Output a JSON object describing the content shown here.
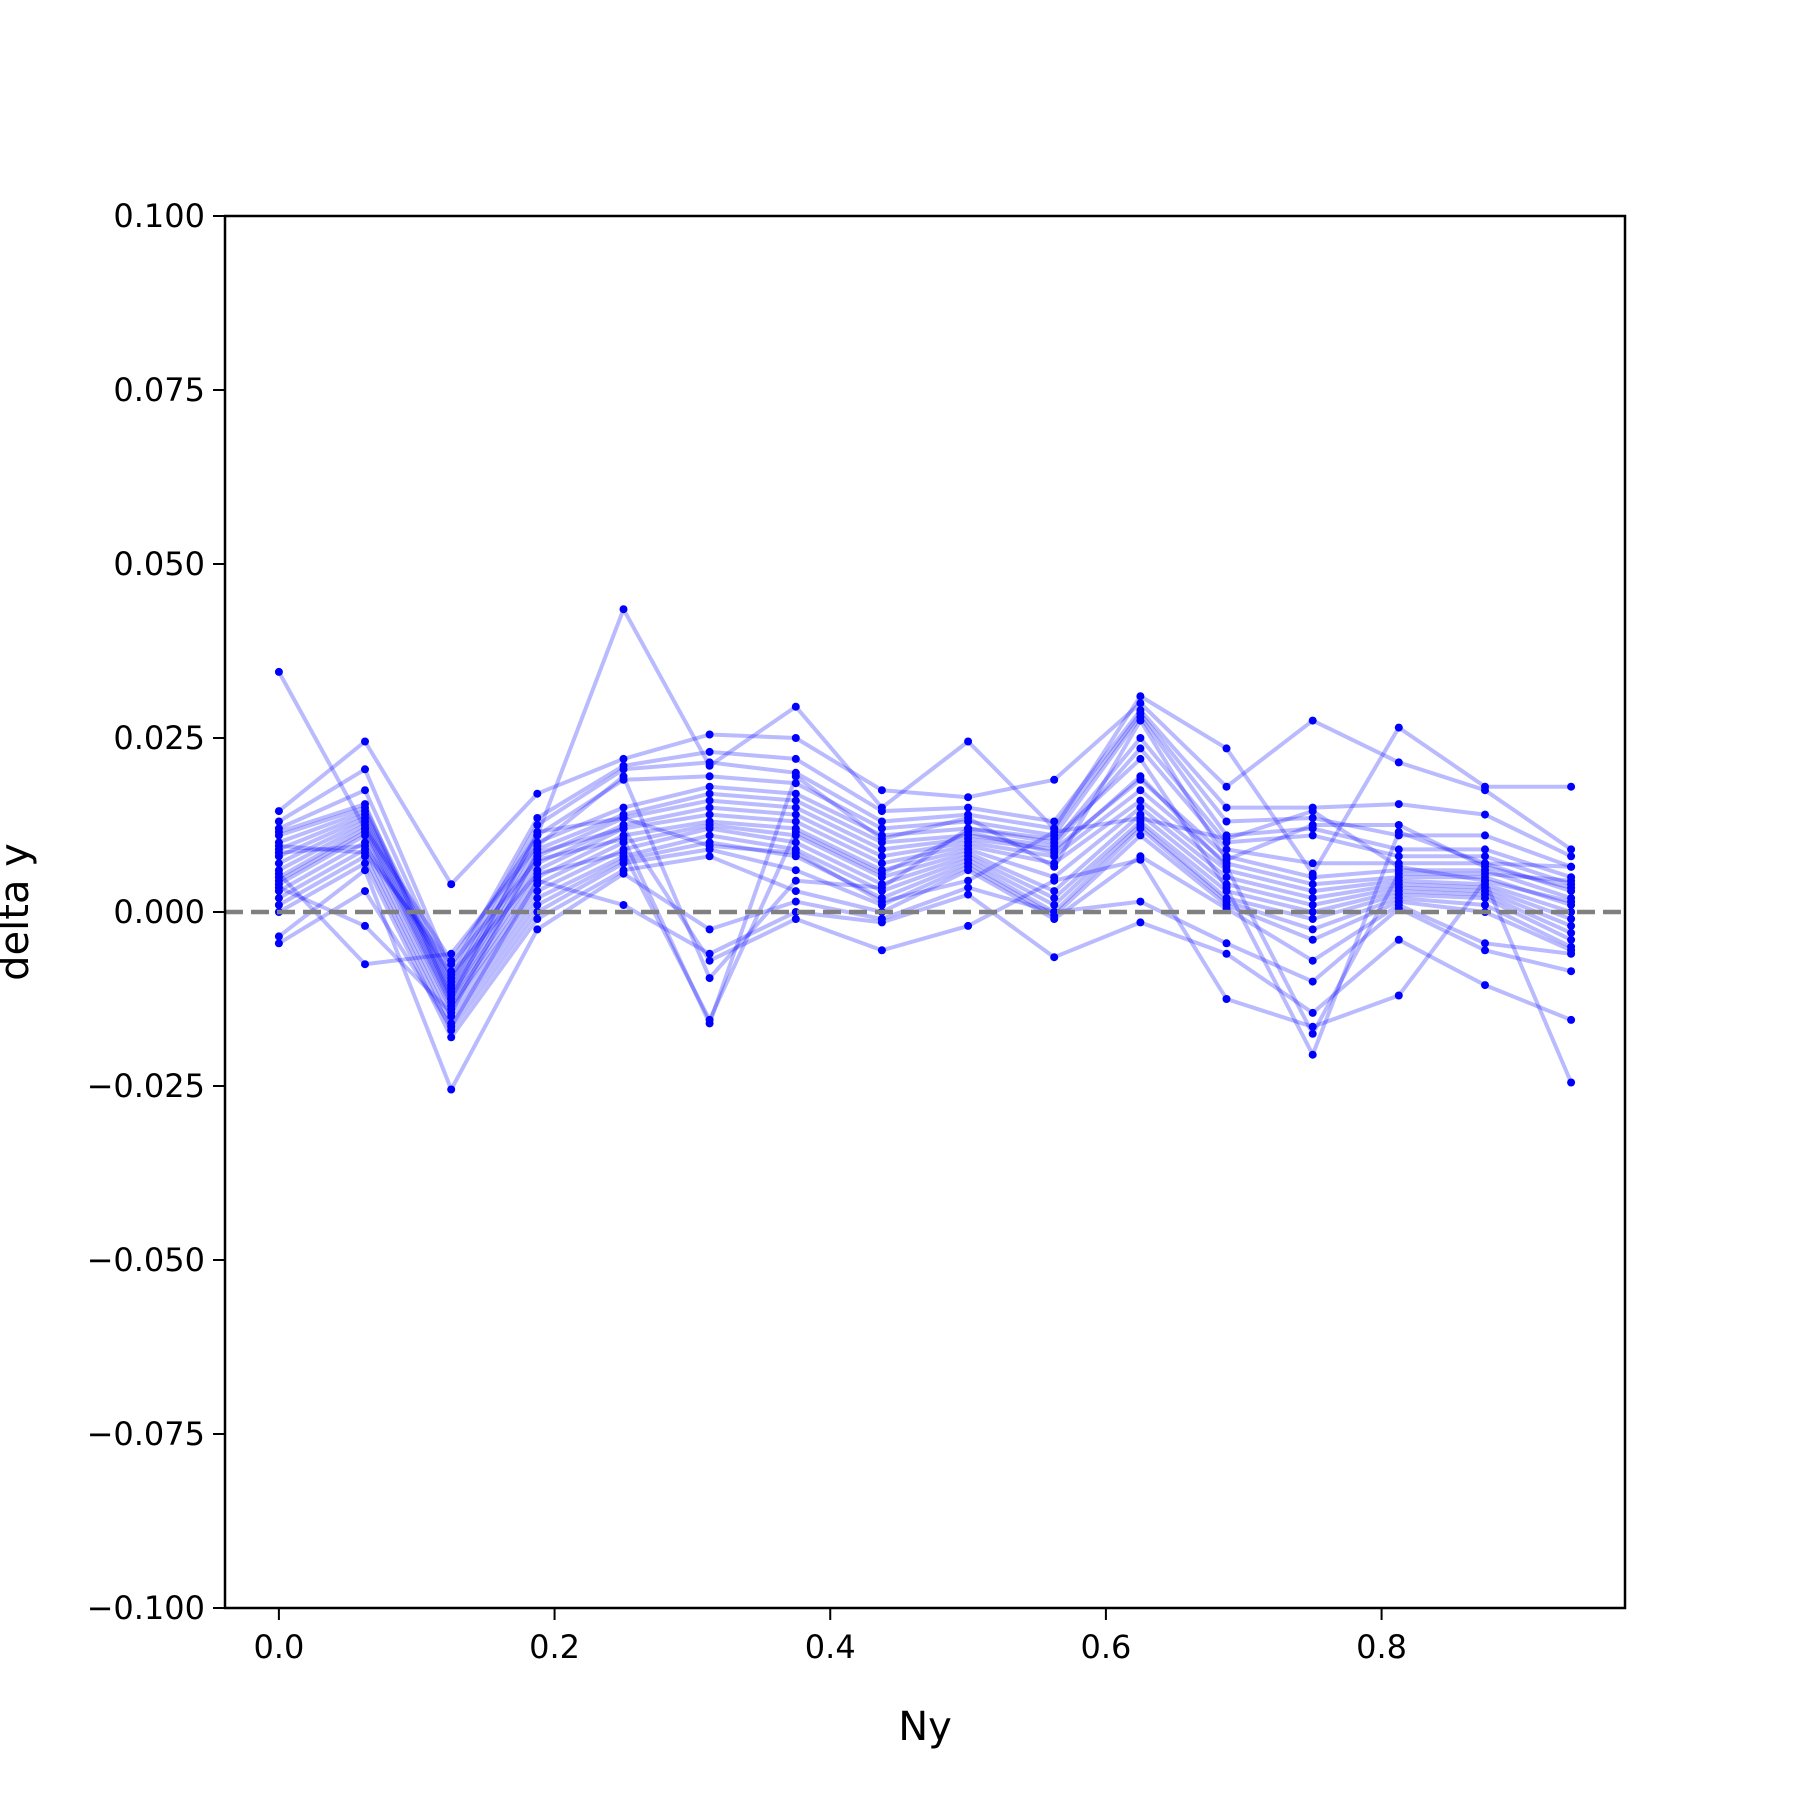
{
  "chart_data": {
    "type": "line",
    "xlabel": "Ny",
    "ylabel": "delta y",
    "xlim": [
      -0.0391,
      0.9766
    ],
    "ylim": [
      -0.1,
      0.1
    ],
    "xticks": [
      0.0,
      0.2,
      0.4,
      0.6,
      0.8
    ],
    "xtick_labels": [
      "0.0",
      "0.2",
      "0.4",
      "0.6",
      "0.8"
    ],
    "yticks": [
      0.1,
      0.075,
      0.05,
      0.025,
      0.0,
      -0.025,
      -0.05,
      -0.075,
      -0.1
    ],
    "ytick_labels": [
      "0.100",
      "0.075",
      "0.050",
      "0.025",
      "0.000",
      "−0.025",
      "−0.050",
      "−0.075",
      "−0.100"
    ],
    "grid": false,
    "reference_line": {
      "y": 0.0,
      "style": "dashed",
      "color": "#808080"
    },
    "series_color": "#0000ff",
    "x": [
      0.0,
      0.0625,
      0.125,
      0.1875,
      0.25,
      0.3125,
      0.375,
      0.4375,
      0.5,
      0.5625,
      0.625,
      0.6875,
      0.75,
      0.8125,
      0.875,
      0.9375
    ],
    "series": [
      {
        "values": [
          0.0345,
          0.012,
          -0.007,
          0.011,
          0.0435,
          0.021,
          0.0295,
          0.015,
          0.0245,
          0.012,
          0.031,
          0.0235,
          0.0055,
          0.0265,
          0.018,
          0.018
        ]
      },
      {
        "values": [
          0.0145,
          0.0245,
          0.004,
          0.017,
          0.022,
          0.0255,
          0.025,
          0.0175,
          0.0165,
          0.019,
          0.03,
          0.018,
          0.0275,
          0.0215,
          0.0175,
          0.009
        ]
      },
      {
        "values": [
          0.013,
          0.0205,
          -0.0085,
          0.0135,
          0.021,
          0.023,
          0.022,
          0.0145,
          0.015,
          0.013,
          0.029,
          0.015,
          0.015,
          0.0155,
          0.014,
          0.008
        ]
      },
      {
        "values": [
          0.012,
          0.0175,
          -0.0095,
          0.0125,
          0.0205,
          0.0215,
          0.02,
          0.013,
          0.014,
          0.012,
          0.0285,
          0.013,
          0.0135,
          0.011,
          0.011,
          0.0065
        ]
      },
      {
        "values": [
          0.011,
          0.015,
          -0.01,
          0.011,
          0.019,
          0.0195,
          0.0185,
          0.012,
          0.013,
          0.011,
          0.028,
          0.011,
          0.012,
          0.009,
          0.009,
          0.005
        ]
      },
      {
        "values": [
          0.01,
          0.0145,
          -0.0105,
          0.01,
          0.015,
          0.018,
          0.017,
          0.011,
          0.012,
          0.01,
          0.025,
          0.01,
          0.011,
          0.008,
          0.008,
          0.004
        ]
      },
      {
        "values": [
          0.009,
          0.014,
          -0.011,
          0.009,
          0.014,
          0.017,
          0.016,
          0.01,
          0.011,
          0.0095,
          0.0235,
          0.009,
          0.007,
          0.007,
          0.007,
          0.003
        ]
      },
      {
        "values": [
          0.008,
          0.0135,
          -0.0115,
          0.008,
          0.0135,
          0.016,
          0.015,
          0.009,
          0.0105,
          0.009,
          0.019,
          0.008,
          0.005,
          0.006,
          0.006,
          0.002
        ]
      },
      {
        "values": [
          0.007,
          0.013,
          -0.012,
          0.007,
          0.0125,
          0.015,
          0.014,
          0.008,
          0.01,
          0.008,
          0.0175,
          0.007,
          0.004,
          0.005,
          0.005,
          0.001
        ]
      },
      {
        "values": [
          0.006,
          0.0125,
          -0.0125,
          0.006,
          0.012,
          0.014,
          0.013,
          0.007,
          0.0095,
          0.007,
          0.016,
          0.006,
          0.003,
          0.0045,
          0.004,
          0.0
        ]
      },
      {
        "values": [
          0.005,
          0.012,
          -0.013,
          0.005,
          0.011,
          0.013,
          0.012,
          0.006,
          0.009,
          0.005,
          0.015,
          0.005,
          0.002,
          0.004,
          0.0035,
          -0.001
        ]
      },
      {
        "values": [
          0.0045,
          0.0115,
          -0.0135,
          0.004,
          0.01,
          0.0125,
          0.011,
          0.005,
          0.0085,
          0.003,
          0.014,
          0.004,
          0.001,
          0.0035,
          0.003,
          -0.002
        ]
      },
      {
        "values": [
          0.004,
          0.011,
          -0.014,
          0.003,
          0.009,
          0.012,
          0.01,
          0.004,
          0.008,
          0.002,
          0.013,
          0.003,
          0.0,
          0.003,
          0.0025,
          -0.003
        ]
      },
      {
        "values": [
          0.003,
          0.01,
          -0.015,
          0.002,
          0.008,
          0.011,
          0.009,
          0.003,
          0.0075,
          0.001,
          0.0125,
          0.002,
          -0.001,
          0.0025,
          0.002,
          -0.004
        ]
      },
      {
        "values": [
          0.002,
          0.009,
          -0.016,
          0.001,
          0.0075,
          0.01,
          0.008,
          0.002,
          0.007,
          0.0,
          0.012,
          0.0015,
          -0.0025,
          0.002,
          0.001,
          -0.005
        ]
      },
      {
        "values": [
          0.001,
          0.008,
          -0.017,
          0.0,
          0.007,
          0.009,
          0.006,
          0.001,
          0.0065,
          -0.0005,
          0.011,
          0.001,
          -0.004,
          0.0015,
          0.0,
          -0.0055
        ]
      },
      {
        "values": [
          0.0,
          0.007,
          -0.018,
          -0.001,
          0.006,
          0.008,
          0.003,
          0.0,
          0.006,
          -0.001,
          0.008,
          0.0005,
          -0.007,
          0.001,
          -0.0045,
          -0.006
        ]
      },
      {
        "values": [
          -0.0035,
          0.006,
          -0.0255,
          -0.0025,
          0.0055,
          -0.0025,
          0.0015,
          -0.001,
          0.0035,
          0.0,
          0.0015,
          -0.0045,
          -0.01,
          0.0005,
          -0.0055,
          -0.0085
        ]
      },
      {
        "values": [
          -0.0045,
          0.003,
          -0.0165,
          0.0045,
          0.001,
          -0.006,
          0.0,
          -0.0015,
          0.0025,
          -0.0065,
          -0.0015,
          -0.006,
          -0.0145,
          -0.004,
          -0.0105,
          -0.0155
        ]
      },
      {
        "values": [
          0.0035,
          -0.002,
          -0.0145,
          0.0085,
          0.012,
          -0.007,
          -0.001,
          -0.0055,
          -0.002,
          0.0045,
          0.0075,
          -0.0125,
          -0.0165,
          -0.012,
          0.0045,
          -0.0245
        ]
      },
      {
        "values": [
          0.0055,
          -0.0075,
          -0.006,
          0.0095,
          0.0195,
          -0.0095,
          0.0045,
          0.0035,
          0.012,
          0.0105,
          0.022,
          0.0035,
          -0.0205,
          0.0115,
          0.007,
          0.0065
        ]
      },
      {
        "values": [
          0.0085,
          0.0095,
          -0.009,
          0.0055,
          0.0085,
          -0.0155,
          0.0115,
          0.0055,
          0.0115,
          0.0085,
          0.0195,
          0.0065,
          -0.0175,
          0.0055,
          0.0055,
          0.0045
        ]
      },
      {
        "values": [
          0.0095,
          0.0085,
          -0.0075,
          0.0075,
          0.0105,
          -0.016,
          0.0195,
          0.0105,
          0.0135,
          0.0065,
          0.0275,
          0.0075,
          0.0125,
          0.0125,
          0.0065,
          0.0035
        ]
      },
      {
        "values": [
          0.0115,
          0.0155,
          -0.0125,
          0.0115,
          0.0135,
          0.0095,
          0.0085,
          0.0015,
          0.0045,
          0.0115,
          0.0135,
          0.0105,
          0.0145,
          0.0065,
          0.0045,
          0.0015
        ]
      }
    ]
  }
}
